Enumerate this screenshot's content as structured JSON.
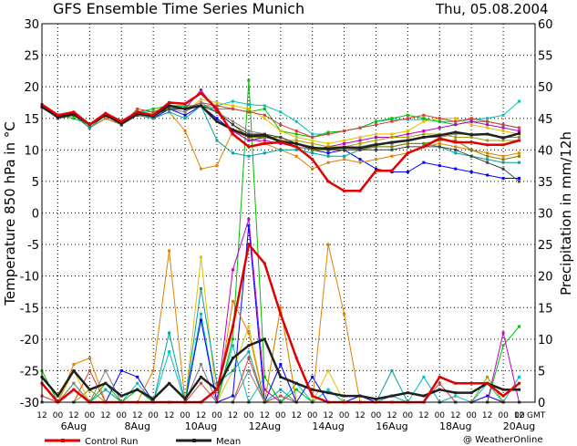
{
  "chart_data": {
    "type": "line",
    "title": "GFS Ensemble Time Series Munich",
    "date_label": "Thu, 05.08.2004",
    "ylabel_left": "Temperature 850 hPa in °C",
    "ylabel_right": "Precipitation in mm/12h",
    "ylim_left": [
      -30,
      30
    ],
    "ylim_right": [
      0,
      60
    ],
    "y_ticks_left": [
      "30",
      "25",
      "20",
      "15",
      "10",
      "5",
      "0",
      "-5",
      "-10",
      "-15",
      "-20",
      "-25",
      "-30"
    ],
    "y_ticks_right": [
      "60",
      "55",
      "50",
      "45",
      "40",
      "35",
      "30",
      "25",
      "20",
      "15",
      "10",
      "5",
      "0"
    ],
    "x_hour_labels": [
      "12",
      "00",
      "12",
      "00",
      "12",
      "00",
      "12",
      "00",
      "12",
      "00",
      "12",
      "00",
      "12",
      "00",
      "12",
      "00",
      "12",
      "00",
      "12",
      "00",
      "12",
      "00",
      "12",
      "00",
      "12",
      "00",
      "12",
      "00",
      "12",
      "00",
      "12",
      "00"
    ],
    "x_day_labels": [
      "6Aug",
      "8Aug",
      "10Aug",
      "12Aug",
      "14Aug",
      "16Aug",
      "18Aug",
      "20Aug"
    ],
    "gmt_label": "GMT",
    "grid": true,
    "legend": {
      "control": "Control Run",
      "mean": "Mean",
      "credit": "@ WeatherOnline",
      "position": "bottom"
    },
    "temperature": {
      "control": [
        17.2,
        15.5,
        16.0,
        14.0,
        15.8,
        14.5,
        16.0,
        15.5,
        17.5,
        17.3,
        19.0,
        16.5,
        12.5,
        10.5,
        11.0,
        11.2,
        10.5,
        8.5,
        5.0,
        3.5,
        3.5,
        6.7,
        6.7,
        9.5,
        10.5,
        11.8,
        11.2,
        11.2,
        10.8,
        10.8,
        11.5
      ],
      "mean": [
        16.8,
        15.2,
        15.7,
        14.0,
        15.5,
        14.2,
        15.8,
        15.3,
        17.0,
        16.5,
        17.0,
        14.5,
        13.2,
        12.2,
        12.3,
        11.3,
        11.0,
        10.3,
        10.2,
        10.4,
        10.3,
        10.8,
        11.2,
        11.5,
        12.0,
        12.3,
        12.8,
        12.4,
        12.5,
        11.9,
        12.6
      ],
      "members": [
        {
          "color": "#00bfbf",
          "values": [
            17.0,
            15.5,
            15.5,
            13.5,
            15.5,
            14.5,
            16.0,
            16.0,
            16.5,
            17.0,
            17.0,
            17.0,
            17.7,
            17.2,
            17.0,
            16.0,
            14.5,
            12.5,
            12.5,
            13.0,
            13.5,
            14.5,
            14.8,
            14.8,
            14.8,
            14.5,
            14.5,
            14.8,
            15.0,
            15.5,
            17.7
          ]
        },
        {
          "color": "#00c000",
          "values": [
            17.0,
            15.5,
            15.0,
            14.0,
            15.5,
            14.0,
            16.0,
            16.5,
            17.0,
            17.0,
            17.0,
            16.5,
            16.5,
            16.0,
            16.5,
            13.0,
            12.5,
            12.0,
            12.8,
            13.0,
            13.5,
            14.5,
            15.0,
            15.5,
            15.0,
            14.5,
            14.0,
            14.5,
            14.5,
            14.0,
            13.5
          ]
        },
        {
          "color": "#e0c000",
          "values": [
            17.0,
            15.0,
            15.5,
            14.0,
            15.5,
            14.0,
            16.0,
            15.5,
            16.5,
            16.0,
            18.0,
            17.5,
            17.0,
            16.5,
            15.0,
            13.0,
            12.0,
            11.5,
            11.0,
            11.5,
            12.0,
            12.5,
            12.5,
            13.0,
            14.5,
            15.0,
            15.0,
            14.0,
            13.5,
            13.0,
            12.5
          ]
        },
        {
          "color": "#d04040",
          "values": [
            17.0,
            15.0,
            15.5,
            14.0,
            15.5,
            14.0,
            16.5,
            16.0,
            17.0,
            16.5,
            17.5,
            17.0,
            16.5,
            16.0,
            15.5,
            14.0,
            13.0,
            12.0,
            12.5,
            13.0,
            13.5,
            14.0,
            14.5,
            15.0,
            15.5,
            15.0,
            14.5,
            15.0,
            14.5,
            14.0,
            13.5
          ]
        },
        {
          "color": "#0000ff",
          "values": [
            17.0,
            15.0,
            15.5,
            13.5,
            15.0,
            14.0,
            15.5,
            15.0,
            16.5,
            15.5,
            17.0,
            15.0,
            13.0,
            11.5,
            12.0,
            11.5,
            10.5,
            10.0,
            9.5,
            10.0,
            8.5,
            7.0,
            6.5,
            6.5,
            8.0,
            7.5,
            7.0,
            6.5,
            6.0,
            5.5,
            5.5
          ]
        },
        {
          "color": "#e08000",
          "values": [
            17.0,
            15.0,
            15.5,
            13.5,
            15.0,
            14.0,
            15.5,
            15.0,
            16.0,
            13.0,
            7.0,
            7.5,
            13.0,
            12.0,
            11.0,
            10.0,
            9.0,
            7.0,
            8.0,
            8.5,
            8.0,
            8.5,
            9.0,
            9.5,
            10.5,
            11.0,
            10.5,
            10.0,
            9.5,
            9.0,
            9.5
          ]
        },
        {
          "color": "#c000c0",
          "values": [
            17.0,
            15.5,
            15.5,
            14.0,
            15.5,
            14.0,
            16.0,
            15.5,
            17.0,
            16.5,
            19.5,
            16.0,
            13.0,
            11.5,
            11.5,
            11.0,
            11.0,
            10.0,
            10.5,
            11.0,
            11.5,
            12.0,
            12.0,
            12.5,
            13.0,
            13.5,
            14.0,
            14.5,
            14.0,
            13.5,
            13.0
          ]
        },
        {
          "color": "#00a0a0",
          "values": [
            17.0,
            15.0,
            15.5,
            13.5,
            15.5,
            14.0,
            15.5,
            15.0,
            16.0,
            15.0,
            17.0,
            11.5,
            9.5,
            9.0,
            9.5,
            10.0,
            10.0,
            9.5,
            9.0,
            9.0,
            10.0,
            10.5,
            10.5,
            11.0,
            11.0,
            10.5,
            9.5,
            9.0,
            8.5,
            8.0,
            8.0
          ]
        },
        {
          "color": "#808080",
          "values": [
            17.0,
            15.0,
            15.5,
            14.0,
            15.5,
            14.0,
            15.5,
            15.5,
            16.5,
            16.0,
            17.5,
            16.0,
            14.5,
            13.0,
            12.5,
            11.5,
            10.5,
            10.0,
            10.0,
            10.5,
            10.5,
            11.0,
            11.0,
            11.5,
            12.0,
            12.0,
            12.5,
            12.5,
            12.5,
            12.0,
            12.0
          ]
        },
        {
          "color": "#a0a000",
          "values": [
            17.0,
            15.0,
            15.5,
            14.0,
            15.5,
            14.0,
            15.5,
            15.5,
            16.5,
            16.5,
            17.0,
            16.0,
            14.0,
            12.5,
            12.0,
            11.5,
            11.5,
            11.0,
            10.5,
            10.5,
            11.0,
            11.5,
            12.0,
            12.0,
            12.5,
            12.5,
            12.0,
            12.0,
            11.5,
            11.5,
            11.5
          ]
        },
        {
          "color": "#808000",
          "values": [
            17.0,
            15.0,
            15.5,
            14.0,
            15.5,
            14.0,
            15.5,
            15.5,
            16.5,
            16.5,
            17.0,
            16.0,
            14.0,
            12.0,
            12.0,
            12.0,
            11.0,
            10.0,
            10.0,
            10.0,
            10.0,
            10.5,
            10.5,
            11.0,
            11.0,
            11.5,
            11.5,
            10.0,
            9.0,
            8.5,
            9.0
          ]
        },
        {
          "color": "#404040",
          "values": [
            17.0,
            15.0,
            15.5,
            14.0,
            15.5,
            14.0,
            15.5,
            15.5,
            16.5,
            16.5,
            17.0,
            16.0,
            14.0,
            12.5,
            12.5,
            12.0,
            11.0,
            10.5,
            10.0,
            10.0,
            10.0,
            10.0,
            10.0,
            10.5,
            10.5,
            10.5,
            10.0,
            9.0,
            8.0,
            7.0,
            5.0
          ]
        }
      ]
    },
    "precipitation": {
      "control": [
        3,
        0,
        2,
        0,
        0,
        0,
        0,
        0,
        0,
        0,
        0,
        2,
        12,
        25,
        22,
        14,
        7,
        1,
        0,
        0,
        0,
        0,
        0,
        0,
        0,
        4,
        3,
        3,
        3,
        1,
        3
      ],
      "mean": [
        4,
        1,
        5,
        2,
        3,
        1,
        2,
        0.5,
        3,
        0.5,
        4,
        2,
        7,
        9,
        10,
        4,
        3,
        2,
        1.5,
        1,
        1,
        0.5,
        1,
        1.5,
        1,
        2,
        1.5,
        1.5,
        3,
        2,
        2
      ],
      "members": [
        {
          "color": "#00bfbf",
          "values": [
            0,
            0,
            3,
            0,
            0,
            0,
            3,
            0,
            8,
            0,
            14,
            0,
            9,
            0,
            4,
            0,
            3,
            0,
            2,
            0,
            0,
            0,
            1,
            0,
            4,
            0,
            1,
            0,
            3,
            0,
            4
          ]
        },
        {
          "color": "#00c000",
          "values": [
            5,
            0,
            2,
            0,
            3,
            0,
            2,
            0,
            0,
            0,
            0,
            0,
            10,
            51,
            4,
            0,
            2,
            0,
            0,
            0,
            0,
            0,
            0,
            0,
            0,
            0,
            0,
            0,
            0,
            9,
            12
          ]
        },
        {
          "color": "#e0c000",
          "values": [
            0,
            0,
            5,
            0,
            0,
            0,
            0,
            0,
            0,
            0,
            23,
            0,
            5,
            12,
            0,
            15,
            0,
            0,
            5,
            0,
            0,
            0,
            0,
            0,
            0,
            0,
            0,
            0,
            0,
            0,
            0
          ]
        },
        {
          "color": "#d04040",
          "values": [
            1,
            0,
            0,
            5,
            0,
            0,
            0,
            0,
            0,
            0,
            3,
            0,
            0,
            7,
            0,
            1,
            0,
            0,
            0,
            0,
            0,
            0,
            0,
            0,
            0,
            3,
            0,
            0,
            0,
            0,
            0
          ]
        },
        {
          "color": "#0000ff",
          "values": [
            0,
            0,
            0,
            0,
            0,
            5,
            4,
            0,
            0,
            0,
            13,
            0,
            1,
            28,
            0,
            6,
            0,
            4,
            0,
            0,
            1,
            0,
            0,
            0,
            0,
            0,
            0,
            0,
            1,
            0,
            0
          ]
        },
        {
          "color": "#e08000",
          "values": [
            0,
            0,
            6,
            7,
            0,
            0,
            0,
            5,
            24,
            0,
            0,
            0,
            16,
            11,
            0,
            15,
            0,
            0,
            25,
            14,
            0,
            0,
            0,
            0,
            0,
            0,
            0,
            0,
            0,
            0,
            0
          ]
        },
        {
          "color": "#c000c0",
          "values": [
            0,
            0,
            0,
            0,
            0,
            0,
            0,
            0,
            0,
            0,
            0,
            0,
            21,
            29,
            2,
            0,
            0,
            0,
            0,
            0,
            0,
            0,
            0,
            0,
            0,
            0,
            0,
            0,
            0,
            11,
            0
          ]
        },
        {
          "color": "#00a0a0",
          "values": [
            0,
            0,
            0,
            0,
            2,
            0,
            0,
            0,
            11,
            0,
            18,
            3,
            5,
            8,
            0,
            2,
            0,
            0,
            0,
            0,
            0,
            0,
            5,
            0,
            0,
            0,
            0,
            0,
            0,
            0,
            0
          ]
        },
        {
          "color": "#808080",
          "values": [
            0,
            0,
            3,
            0,
            5,
            0,
            0,
            0,
            0,
            0,
            6,
            0,
            0,
            5,
            0,
            0,
            0,
            0,
            0,
            0,
            0,
            0,
            0,
            0,
            0,
            0,
            0,
            0,
            0,
            0,
            0
          ]
        },
        {
          "color": "#a0a000",
          "values": [
            0,
            0,
            0,
            2,
            0,
            0,
            0,
            0,
            0,
            0,
            0,
            0,
            0,
            0,
            0,
            0,
            0,
            0,
            0,
            0,
            0,
            0,
            0,
            0,
            0,
            0,
            0,
            0,
            4,
            0,
            0
          ]
        },
        {
          "color": "#808000",
          "values": [
            0,
            0,
            0,
            0,
            0,
            0,
            0,
            0,
            0,
            0,
            0,
            0,
            0,
            0,
            0,
            0,
            0,
            0,
            0,
            0,
            0,
            0,
            0,
            0,
            0,
            0,
            0,
            0,
            0,
            0,
            0
          ]
        },
        {
          "color": "#404040",
          "values": [
            0,
            0,
            0,
            0,
            0,
            0,
            0,
            0,
            0,
            0,
            0,
            0,
            0,
            0,
            0,
            0,
            0,
            0,
            0,
            0,
            0,
            0,
            0,
            0,
            0,
            0,
            0,
            0,
            0,
            0,
            0
          ]
        }
      ]
    },
    "colors": {
      "control": "#e00000",
      "mean": "#202020",
      "grid": "#000000",
      "background": "#ffffff"
    }
  }
}
